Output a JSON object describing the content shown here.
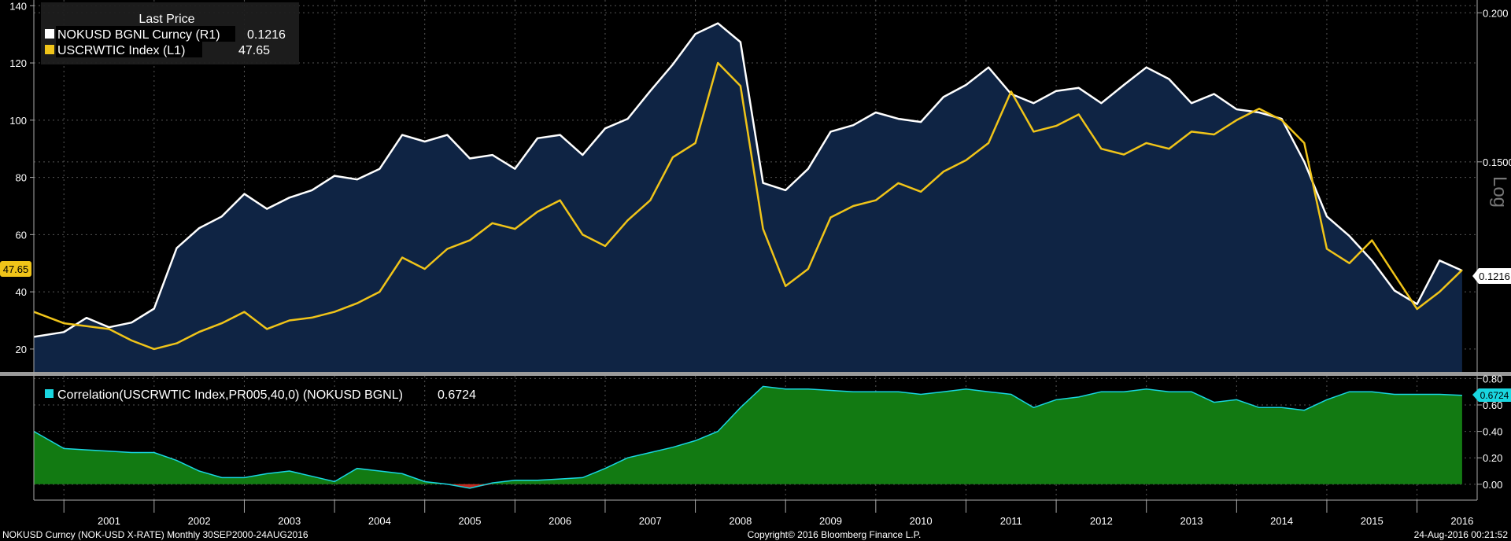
{
  "legend": {
    "header": "Last Price",
    "items": [
      {
        "label": "NOKUSD BGNL Curncy  (R1)",
        "value": "0.1216",
        "color": "#ffffff"
      },
      {
        "label": "USCRWTIC Index  (L1)",
        "value": "47.65",
        "color": "#f0c419"
      }
    ]
  },
  "lower_legend": {
    "label": "Correlation(USCRWTIC Index,PR005,40,0) (NOKUSD BGNL)",
    "value": "0.6724",
    "color": "#19d6e0"
  },
  "right_axis_label": "Log",
  "last_price_flags": {
    "left": "47.65",
    "right": "0.1216",
    "lower": "0.6724"
  },
  "footer": {
    "left": "NOKUSD Curncy (NOK-USD X-RATE)  Monthly 30SEP2000-24AUG2016",
    "center": "Copyright© 2016 Bloomberg Finance L.P.",
    "right": "24-Aug-2016 00:21:52"
  },
  "colors": {
    "area_fill": "#0f2444",
    "nok_line": "#ffffff",
    "oil_line": "#f0c419",
    "corr_fill": "#127a12",
    "corr_line": "#19d6e0",
    "corr_negative": "#c0271f",
    "grid": "#555555"
  },
  "chart_data": [
    {
      "type": "line",
      "x": [
        "2000-09",
        "2001-01",
        "2001-04",
        "2001-07",
        "2001-10",
        "2002-01",
        "2002-04",
        "2002-07",
        "2002-10",
        "2003-01",
        "2003-04",
        "2003-07",
        "2003-10",
        "2004-01",
        "2004-04",
        "2004-07",
        "2004-10",
        "2005-01",
        "2005-04",
        "2005-07",
        "2005-10",
        "2006-01",
        "2006-04",
        "2006-07",
        "2006-10",
        "2007-01",
        "2007-04",
        "2007-07",
        "2007-10",
        "2008-01",
        "2008-04",
        "2008-07",
        "2008-10",
        "2009-01",
        "2009-04",
        "2009-07",
        "2009-10",
        "2010-01",
        "2010-04",
        "2010-07",
        "2010-10",
        "2011-01",
        "2011-04",
        "2011-07",
        "2011-10",
        "2012-01",
        "2012-04",
        "2012-07",
        "2012-10",
        "2013-01",
        "2013-04",
        "2013-07",
        "2013-10",
        "2014-01",
        "2014-04",
        "2014-07",
        "2014-10",
        "2015-01",
        "2015-04",
        "2015-07",
        "2015-10",
        "2016-01",
        "2016-04",
        "2016-07"
      ],
      "series": [
        {
          "name": "NOKUSD BGNL Curncy",
          "axis": "right-log",
          "values": [
            0.107,
            0.108,
            0.111,
            0.109,
            0.11,
            0.113,
            0.127,
            0.132,
            0.135,
            0.141,
            0.137,
            0.14,
            0.142,
            0.146,
            0.145,
            0.148,
            0.158,
            0.156,
            0.158,
            0.151,
            0.152,
            0.148,
            0.157,
            0.158,
            0.152,
            0.16,
            0.163,
            0.172,
            0.181,
            0.192,
            0.196,
            0.189,
            0.144,
            0.142,
            0.148,
            0.159,
            0.161,
            0.165,
            0.163,
            0.162,
            0.17,
            0.174,
            0.18,
            0.171,
            0.168,
            0.172,
            0.173,
            0.168,
            0.174,
            0.18,
            0.176,
            0.168,
            0.171,
            0.166,
            0.165,
            0.163,
            0.15,
            0.135,
            0.13,
            0.124,
            0.117,
            0.114,
            0.124,
            0.1216
          ]
        },
        {
          "name": "USCRWTIC Index",
          "axis": "left",
          "values": [
            33,
            29,
            28,
            27,
            23,
            20,
            22,
            26,
            29,
            33,
            27,
            30,
            31,
            33,
            36,
            40,
            52,
            48,
            55,
            58,
            64,
            62,
            68,
            72,
            60,
            56,
            65,
            72,
            87,
            92,
            120,
            112,
            62,
            42,
            48,
            66,
            70,
            72,
            78,
            75,
            82,
            86,
            92,
            110,
            96,
            98,
            102,
            90,
            88,
            92,
            90,
            96,
            95,
            100,
            104,
            100,
            92,
            55,
            50,
            58,
            46,
            34,
            40,
            47.65
          ]
        }
      ],
      "ylim_left": [
        12,
        142
      ],
      "ytick_left": [
        20,
        40,
        60,
        80,
        100,
        120,
        140
      ],
      "ylim_right": [
        0.1,
        0.205
      ],
      "yscale_right": "log",
      "ytick_right": [
        "0.1500",
        "0.200"
      ],
      "x_tick_labels": [
        "2001",
        "2002",
        "2003",
        "2004",
        "2005",
        "2006",
        "2007",
        "2008",
        "2009",
        "2010",
        "2011",
        "2012",
        "2013",
        "2014",
        "2015",
        "2016"
      ],
      "grid": true
    },
    {
      "type": "area",
      "x": [
        "2000-09",
        "2001-01",
        "2001-04",
        "2001-07",
        "2001-10",
        "2002-01",
        "2002-04",
        "2002-07",
        "2002-10",
        "2003-01",
        "2003-04",
        "2003-07",
        "2003-10",
        "2004-01",
        "2004-04",
        "2004-07",
        "2004-10",
        "2005-01",
        "2005-04",
        "2005-07",
        "2005-10",
        "2006-01",
        "2006-04",
        "2006-07",
        "2006-10",
        "2007-01",
        "2007-04",
        "2007-07",
        "2007-10",
        "2008-01",
        "2008-04",
        "2008-07",
        "2008-10",
        "2009-01",
        "2009-04",
        "2009-07",
        "2009-10",
        "2010-01",
        "2010-04",
        "2010-07",
        "2010-10",
        "2011-01",
        "2011-04",
        "2011-07",
        "2011-10",
        "2012-01",
        "2012-04",
        "2012-07",
        "2012-10",
        "2013-01",
        "2013-04",
        "2013-07",
        "2013-10",
        "2014-01",
        "2014-04",
        "2014-07",
        "2014-10",
        "2015-01",
        "2015-04",
        "2015-07",
        "2015-10",
        "2016-01",
        "2016-04",
        "2016-07"
      ],
      "series": [
        {
          "name": "Correlation(USCRWTIC Index,PR005,40,0) (NOKUSD BGNL)",
          "values": [
            0.4,
            0.27,
            0.26,
            0.25,
            0.24,
            0.24,
            0.18,
            0.1,
            0.05,
            0.05,
            0.08,
            0.1,
            0.06,
            0.02,
            0.12,
            0.1,
            0.08,
            0.02,
            0.0,
            -0.03,
            0.01,
            0.03,
            0.03,
            0.04,
            0.05,
            0.12,
            0.2,
            0.24,
            0.28,
            0.33,
            0.4,
            0.58,
            0.74,
            0.72,
            0.72,
            0.71,
            0.7,
            0.7,
            0.7,
            0.68,
            0.7,
            0.72,
            0.7,
            0.68,
            0.58,
            0.64,
            0.66,
            0.7,
            0.7,
            0.72,
            0.7,
            0.7,
            0.62,
            0.64,
            0.58,
            0.58,
            0.56,
            0.64,
            0.7,
            0.7,
            0.68,
            0.68,
            0.68,
            0.6724
          ]
        }
      ],
      "ylim": [
        -0.12,
        0.82
      ],
      "ytick": [
        "0.00",
        "0.20",
        "0.40",
        "0.60",
        "0.80"
      ],
      "grid": true
    }
  ]
}
